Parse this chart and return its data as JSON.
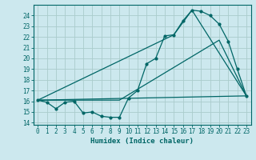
{
  "xlabel": "Humidex (Indice chaleur)",
  "bg_color": "#cce8ee",
  "grid_color": "#aacccc",
  "line_color": "#006666",
  "xlim": [
    -0.5,
    23.5
  ],
  "ylim": [
    13.8,
    25.0
  ],
  "yticks": [
    14,
    15,
    16,
    17,
    18,
    19,
    20,
    21,
    22,
    23,
    24
  ],
  "xticks": [
    0,
    1,
    2,
    3,
    4,
    5,
    6,
    7,
    8,
    9,
    10,
    11,
    12,
    13,
    14,
    15,
    16,
    17,
    18,
    19,
    20,
    21,
    22,
    23
  ],
  "series1_x": [
    0,
    1,
    2,
    3,
    4,
    5,
    6,
    7,
    8,
    9,
    10,
    11,
    12,
    13,
    14,
    15,
    16,
    17,
    18,
    19,
    20,
    21,
    22,
    23
  ],
  "series1_y": [
    16.1,
    15.9,
    15.3,
    15.9,
    16.0,
    14.9,
    15.0,
    14.6,
    14.5,
    14.5,
    16.3,
    17.0,
    19.5,
    20.0,
    22.1,
    22.2,
    23.5,
    24.5,
    24.4,
    24.0,
    23.2,
    21.6,
    19.0,
    16.5
  ],
  "series2_x": [
    0,
    9,
    20,
    23
  ],
  "series2_y": [
    16.1,
    16.1,
    21.7,
    16.5
  ],
  "series3_x": [
    0,
    15,
    17,
    23
  ],
  "series3_y": [
    16.1,
    22.2,
    24.5,
    16.5
  ],
  "series4_x": [
    0,
    23
  ],
  "series4_y": [
    16.1,
    16.5
  ]
}
